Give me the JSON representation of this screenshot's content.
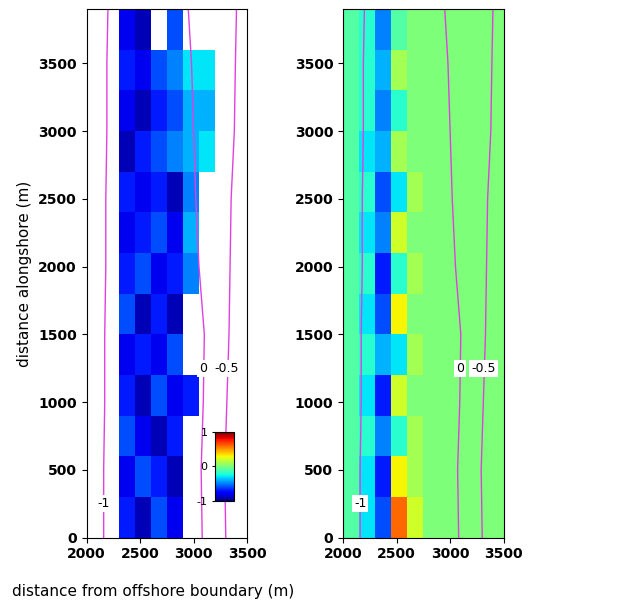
{
  "chart_data": [
    {
      "type": "heatmap",
      "x_label": "distance from offshore boundary (m)",
      "y_label": "distance alongshore (m)",
      "xlim": [
        2000,
        3500
      ],
      "xticks": [
        2000,
        2500,
        3000,
        3500
      ],
      "ylim": [
        0,
        3900
      ],
      "yticks": [
        0,
        500,
        1000,
        1500,
        2000,
        2500,
        3000,
        3500
      ],
      "x_edges": [
        2000,
        2150,
        2300,
        2450,
        2600,
        2750,
        2900,
        3050,
        3200,
        3350,
        3500
      ],
      "y_edges": [
        0,
        300,
        600,
        900,
        1200,
        1500,
        1800,
        2100,
        2400,
        2700,
        3000,
        3300,
        3600,
        3900
      ],
      "cells": [
        [
          null,
          null,
          -0.7,
          -0.9,
          -0.6,
          -0.8,
          null,
          null,
          null,
          null
        ],
        [
          null,
          null,
          -0.8,
          -0.6,
          -0.7,
          -0.9,
          null,
          null,
          null,
          null
        ],
        [
          null,
          null,
          -0.6,
          -0.8,
          -0.9,
          -0.7,
          null,
          null,
          null,
          null
        ],
        [
          null,
          null,
          -0.7,
          -0.9,
          -0.6,
          -0.8,
          -0.7,
          null,
          null,
          null
        ],
        [
          null,
          null,
          -0.8,
          -0.7,
          -0.8,
          -0.6,
          null,
          null,
          null,
          null
        ],
        [
          null,
          null,
          -0.6,
          -0.9,
          -0.7,
          -0.9,
          null,
          null,
          null,
          null
        ],
        [
          null,
          null,
          -0.7,
          -0.6,
          -0.8,
          -0.7,
          -0.5,
          null,
          null,
          null
        ],
        [
          null,
          null,
          -0.8,
          -0.7,
          -0.6,
          -0.8,
          -0.4,
          null,
          null,
          null
        ],
        [
          null,
          null,
          -0.7,
          -0.8,
          -0.7,
          -0.9,
          -0.5,
          null,
          null,
          null
        ],
        [
          null,
          null,
          -0.9,
          -0.7,
          -0.6,
          -0.5,
          -0.4,
          -0.3,
          null,
          null
        ],
        [
          null,
          null,
          -0.8,
          -0.9,
          -0.7,
          -0.6,
          -0.4,
          -0.4,
          null,
          null
        ],
        [
          null,
          null,
          -0.7,
          -0.8,
          -0.6,
          -0.5,
          -0.3,
          -0.3,
          null,
          null
        ],
        [
          null,
          null,
          -0.8,
          -0.9,
          null,
          -0.6,
          null,
          null,
          null,
          null
        ]
      ],
      "colorbar": {
        "range": [
          -1,
          1
        ],
        "ticks": [
          -1,
          0,
          1
        ]
      },
      "contours": [
        {
          "label": "-1",
          "y": [
            0,
            500,
            1000,
            1500,
            2000,
            2500,
            3000,
            3500,
            3900
          ],
          "x": [
            2160,
            2160,
            2170,
            2170,
            2180,
            2180,
            2190,
            2190,
            2200
          ]
        },
        {
          "label": "0",
          "y": [
            0,
            500,
            1000,
            1500,
            2000,
            2500,
            3000,
            3500,
            3900
          ],
          "x": [
            3080,
            3070,
            3090,
            3100,
            3050,
            3020,
            3000,
            2980,
            2950
          ]
        },
        {
          "label": "-0.5",
          "y": [
            0,
            500,
            1000,
            1500,
            2000,
            2500,
            3000,
            3500,
            3900
          ],
          "x": [
            3300,
            3290,
            3310,
            3330,
            3340,
            3350,
            3380,
            3390,
            3400
          ]
        }
      ],
      "color": "#e040e0"
    },
    {
      "type": "heatmap",
      "xlim": [
        2000,
        3500
      ],
      "xticks": [
        2000,
        2500,
        3000,
        3500
      ],
      "ylim": [
        0,
        3900
      ],
      "yticks": [
        0,
        500,
        1000,
        1500,
        2000,
        2500,
        3000,
        3500
      ],
      "x_edges": [
        2000,
        2150,
        2300,
        2450,
        2600,
        2750,
        2900,
        3050,
        3200,
        3350,
        3500
      ],
      "y_edges": [
        0,
        300,
        600,
        900,
        1200,
        1500,
        1800,
        2100,
        2400,
        2700,
        3000,
        3300,
        3600,
        3900
      ],
      "cells": [
        [
          -0.1,
          -0.3,
          -0.6,
          0.6,
          0.2,
          0,
          0,
          0,
          0,
          0
        ],
        [
          -0.1,
          -0.3,
          -0.7,
          0.3,
          0.1,
          0,
          0,
          0,
          0,
          0
        ],
        [
          -0.1,
          -0.2,
          -0.5,
          -0.2,
          0.1,
          0,
          0,
          0,
          0,
          0
        ],
        [
          -0.1,
          -0.3,
          -0.7,
          0.2,
          0,
          0,
          0,
          0,
          0,
          0
        ],
        [
          -0.1,
          -0.2,
          -0.4,
          -0.3,
          0.1,
          0,
          0,
          0,
          0,
          0
        ],
        [
          -0.1,
          -0.3,
          -0.6,
          0.3,
          0,
          0,
          0,
          0,
          0,
          0
        ],
        [
          -0.1,
          -0.2,
          -0.7,
          -0.2,
          0.1,
          0,
          0,
          0,
          0,
          0
        ],
        [
          -0.1,
          -0.3,
          -0.5,
          0.2,
          0,
          0,
          0,
          0,
          0,
          0
        ],
        [
          -0.1,
          -0.2,
          -0.6,
          -0.3,
          0.1,
          0,
          0,
          0,
          0,
          0
        ],
        [
          -0.1,
          -0.3,
          -0.4,
          0.1,
          0,
          0,
          0,
          0,
          0,
          0
        ],
        [
          -0.1,
          -0.2,
          -0.5,
          -0.2,
          0,
          0,
          0,
          0,
          0,
          0
        ],
        [
          -0.1,
          -0.2,
          -0.4,
          0.1,
          0,
          0,
          0,
          0,
          0,
          0
        ],
        [
          -0.1,
          -0.2,
          -0.5,
          -0.1,
          0,
          0,
          0,
          0,
          0,
          0
        ]
      ],
      "color_range": [
        -1,
        1
      ],
      "contours": [
        {
          "label": "-1",
          "y": [
            0,
            500,
            1000,
            1500,
            2000,
            2500,
            3000,
            3500,
            3900
          ],
          "x": [
            2160,
            2160,
            2170,
            2170,
            2180,
            2180,
            2190,
            2190,
            2200
          ]
        },
        {
          "label": "0",
          "y": [
            0,
            500,
            1000,
            1500,
            2000,
            2500,
            3000,
            3500,
            3900
          ],
          "x": [
            3080,
            3070,
            3090,
            3100,
            3050,
            3020,
            3000,
            2980,
            2950
          ]
        },
        {
          "label": "-0.5",
          "y": [
            0,
            500,
            1000,
            1500,
            2000,
            2500,
            3000,
            3500,
            3900
          ],
          "x": [
            3300,
            3290,
            3310,
            3330,
            3340,
            3350,
            3380,
            3390,
            3400
          ]
        }
      ],
      "color": "#e040e0"
    }
  ]
}
